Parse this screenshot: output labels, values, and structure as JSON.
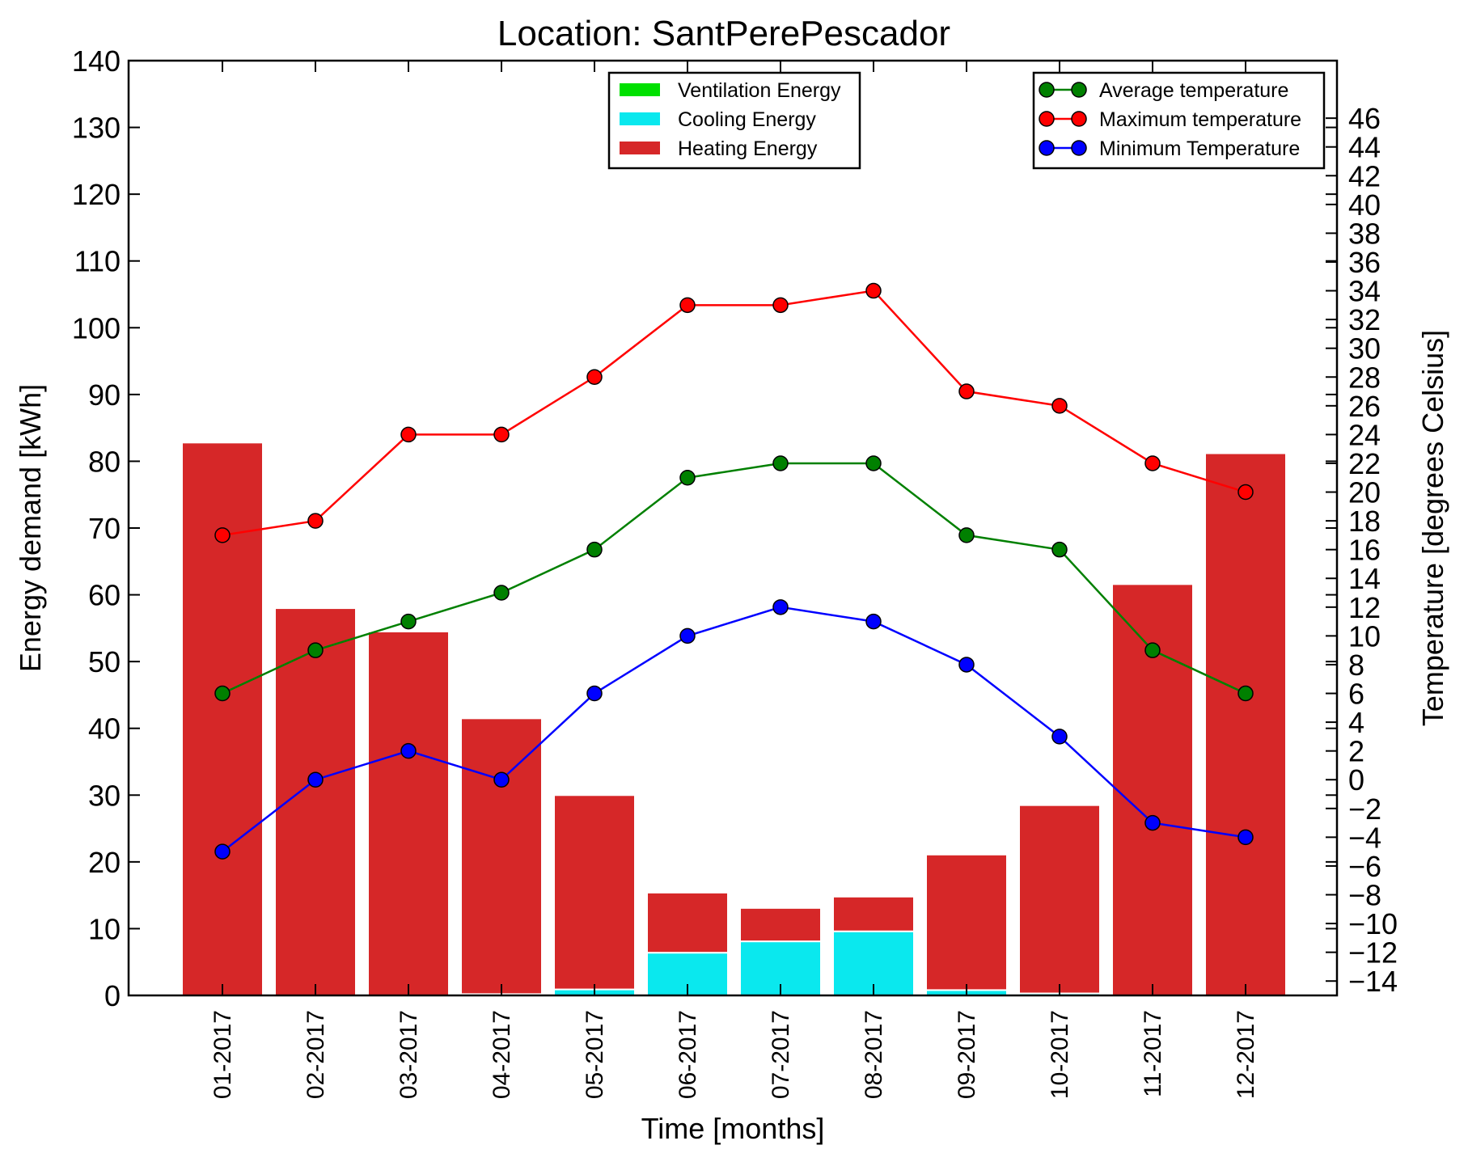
{
  "chart_data": {
    "type": "bar",
    "title": "Location: SantPerePescador",
    "xlabel": "Time [months]",
    "ylabel": "Energy demand [kWh]",
    "y2label": "Temperature [degrees Celsius]",
    "categories": [
      "01-2017",
      "02-2017",
      "03-2017",
      "04-2017",
      "05-2017",
      "06-2017",
      "07-2017",
      "08-2017",
      "09-2017",
      "10-2017",
      "11-2017",
      "12-2017"
    ],
    "ylim": [
      0,
      140
    ],
    "y_ticks": [
      "0",
      "10",
      "20",
      "30",
      "40",
      "50",
      "60",
      "70",
      "80",
      "90",
      "100",
      "110",
      "120",
      "130",
      "140"
    ],
    "y2lim": [
      -15,
      50
    ],
    "y2_ticks": [
      "−14",
      "−12",
      "−10",
      "−8",
      "−6",
      "−4",
      "−2",
      "0",
      "2",
      "4",
      "6",
      "8",
      "10",
      "12",
      "14",
      "16",
      "18",
      "20",
      "22",
      "24",
      "26",
      "28",
      "30",
      "32",
      "34",
      "36",
      "38",
      "40",
      "42",
      "44",
      "46"
    ],
    "bar_series": [
      {
        "name": "Ventilation Energy",
        "color": "#00e000",
        "values": [
          0,
          0,
          0,
          0,
          0,
          0,
          0,
          0,
          0,
          0,
          0,
          0
        ]
      },
      {
        "name": "Cooling Energy",
        "color": "#0ae8ee",
        "values": [
          0,
          0,
          0,
          0.2,
          0.9,
          6.4,
          8.1,
          9.6,
          0.8,
          0.3,
          0,
          0
        ]
      },
      {
        "name": "Heating Energy",
        "color": "#d62728",
        "values": [
          82.8,
          58,
          54.5,
          41.3,
          29.1,
          9,
          5,
          5.2,
          20.3,
          28.2,
          61.6,
          81.2
        ]
      }
    ],
    "line_series": [
      {
        "name": "Average temperature",
        "color": "#008000",
        "values": [
          6,
          9,
          11,
          13,
          16,
          21,
          22,
          22,
          17,
          16,
          9,
          6
        ]
      },
      {
        "name": "Maximum temperature",
        "color": "#ff0000",
        "values": [
          17,
          18,
          24,
          24,
          28,
          33,
          33,
          34,
          27,
          26,
          22,
          20
        ]
      },
      {
        "name": "Minimum Temperature",
        "color": "#0000ff",
        "values": [
          -5,
          0,
          2,
          0,
          6,
          10,
          12,
          11,
          8,
          3,
          -3,
          -4
        ]
      }
    ],
    "legend_bars_position": "top-center",
    "legend_lines_position": "top-right",
    "grid": false
  }
}
